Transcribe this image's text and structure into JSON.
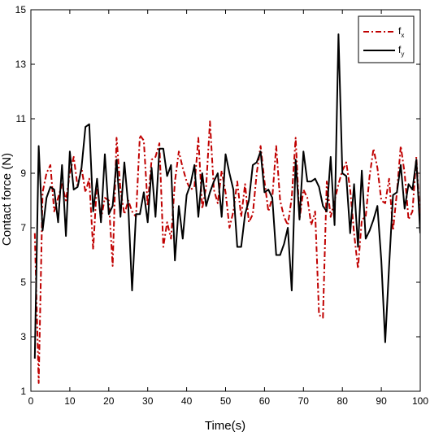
{
  "chart_data": {
    "type": "line",
    "title": "",
    "xlabel": "Time(s)",
    "ylabel": "Contact force (N)",
    "xlim": [
      0,
      100
    ],
    "ylim": [
      1,
      15
    ],
    "xticks": [
      "0",
      "10",
      "20",
      "30",
      "40",
      "50",
      "60",
      "70",
      "80",
      "90",
      "100"
    ],
    "yticks": [
      "1",
      "3",
      "5",
      "7",
      "9",
      "11",
      "13",
      "15"
    ],
    "grid": false,
    "legend_position": "top-right",
    "series": [
      {
        "name": "f",
        "name_subscript": "x",
        "color": "#c00000",
        "style": "dash-dot",
        "x": [
          1,
          2,
          3,
          4,
          5,
          6,
          7,
          8,
          9,
          10,
          11,
          12,
          13,
          14,
          15,
          16,
          17,
          18,
          19,
          20,
          21,
          22,
          23,
          24,
          25,
          26,
          27,
          28,
          29,
          30,
          31,
          32,
          33,
          34,
          35,
          36,
          37,
          38,
          39,
          40,
          41,
          42,
          43,
          44,
          45,
          46,
          47,
          48,
          49,
          50,
          51,
          52,
          53,
          54,
          55,
          56,
          57,
          58,
          59,
          60,
          61,
          62,
          63,
          64,
          65,
          66,
          67,
          68,
          69,
          70,
          71,
          72,
          73,
          74,
          75,
          76,
          77,
          78,
          79,
          80,
          81,
          82,
          83,
          84,
          85,
          86,
          87,
          88,
          89,
          90,
          91,
          92,
          93,
          94,
          95,
          96,
          97,
          98,
          99,
          100
        ],
        "y": [
          6.8,
          1.3,
          8.3,
          9.0,
          9.3,
          7.6,
          8.1,
          8.6,
          8.0,
          9.0,
          9.6,
          8.5,
          9.2,
          8.3,
          8.8,
          6.2,
          8.7,
          7.3,
          8.1,
          8.0,
          5.6,
          10.3,
          8.4,
          7.5,
          8.0,
          7.6,
          7.4,
          10.4,
          10.2,
          7.8,
          9.5,
          9.6,
          10.1,
          6.3,
          7.2,
          6.6,
          8.7,
          9.8,
          9.2,
          8.7,
          8.4,
          8.5,
          10.3,
          7.7,
          8.5,
          10.9,
          8.4,
          7.9,
          9.1,
          8.3,
          7.0,
          7.6,
          8.7,
          7.4,
          8.6,
          7.2,
          7.5,
          9.0,
          10.0,
          8.7,
          7.6,
          8.1,
          10.0,
          8.0,
          7.4,
          7.1,
          8.1,
          10.3,
          7.3,
          8.4,
          8.1,
          7.1,
          7.6,
          3.8,
          3.7,
          8.7,
          7.4,
          8.0,
          8.6,
          9.1,
          9.4,
          8.4,
          6.8,
          5.5,
          7.3,
          7.4,
          8.9,
          9.9,
          9.2,
          8.0,
          7.9,
          8.8,
          6.9,
          8.3,
          10.0,
          9.0,
          7.3,
          7.6,
          9.6,
          7.2
        ]
      },
      {
        "name": "f",
        "name_subscript": "y",
        "color": "#000000",
        "style": "solid",
        "x": [
          1,
          2,
          3,
          4,
          5,
          6,
          7,
          8,
          9,
          10,
          11,
          12,
          13,
          14,
          15,
          16,
          17,
          18,
          19,
          20,
          21,
          22,
          23,
          24,
          25,
          26,
          27,
          28,
          29,
          30,
          31,
          32,
          33,
          34,
          35,
          36,
          37,
          38,
          39,
          40,
          41,
          42,
          43,
          44,
          45,
          46,
          47,
          48,
          49,
          50,
          51,
          52,
          53,
          54,
          55,
          56,
          57,
          58,
          59,
          60,
          61,
          62,
          63,
          64,
          65,
          66,
          67,
          68,
          69,
          70,
          71,
          72,
          73,
          74,
          75,
          76,
          77,
          78,
          79,
          80,
          81,
          82,
          83,
          84,
          85,
          86,
          87,
          88,
          89,
          90,
          91,
          92,
          93,
          94,
          95,
          96,
          97,
          98,
          99,
          100
        ],
        "y": [
          2.2,
          10.0,
          6.9,
          8.1,
          8.5,
          8.4,
          7.2,
          9.3,
          6.7,
          9.8,
          8.4,
          8.5,
          9.2,
          10.7,
          10.8,
          7.6,
          8.8,
          7.2,
          9.7,
          7.5,
          7.8,
          9.5,
          7.4,
          9.4,
          7.8,
          4.7,
          7.5,
          7.5,
          8.3,
          7.2,
          9.2,
          7.4,
          9.9,
          9.9,
          8.9,
          9.3,
          5.8,
          7.8,
          6.6,
          8.2,
          8.6,
          9.3,
          7.4,
          9.0,
          7.8,
          8.3,
          8.7,
          9.0,
          7.4,
          9.7,
          9.0,
          8.4,
          6.3,
          6.3,
          7.5,
          8.0,
          9.3,
          9.4,
          9.8,
          8.3,
          8.4,
          8.1,
          6.0,
          6.0,
          6.4,
          7.0,
          4.7,
          9.5,
          7.3,
          9.8,
          8.7,
          8.7,
          8.8,
          8.5,
          7.8,
          7.6,
          9.6,
          7.1,
          14.1,
          9.0,
          8.9,
          6.8,
          8.6,
          6.3,
          9.1,
          6.6,
          6.9,
          7.3,
          7.8,
          5.8,
          2.8,
          5.6,
          8.2,
          8.3,
          9.3,
          7.7,
          8.6,
          8.4,
          9.5,
          6.8
        ]
      }
    ]
  }
}
